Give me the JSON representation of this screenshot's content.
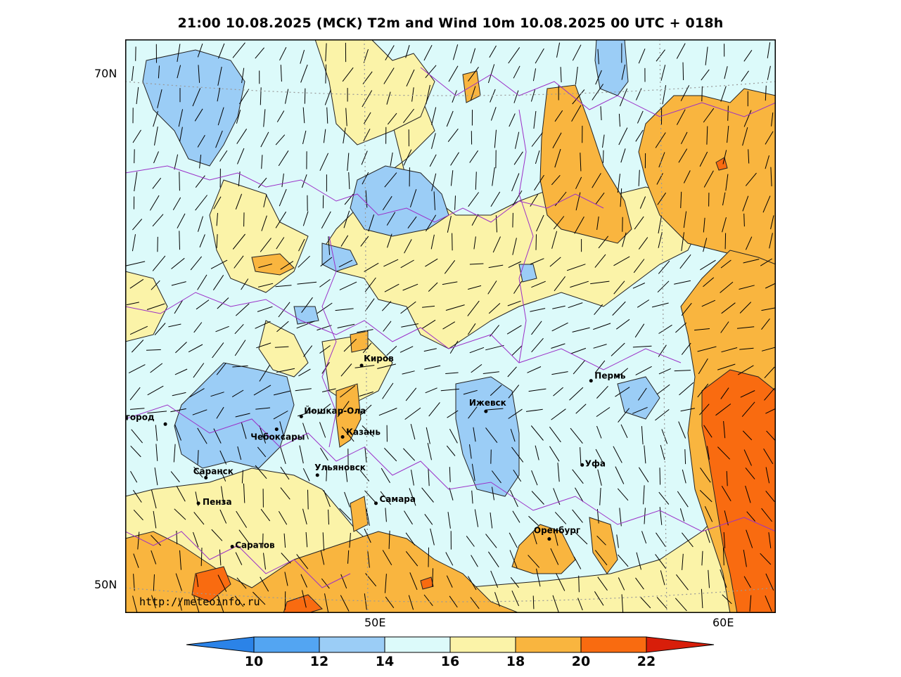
{
  "title": "21:00 10.08.2025 (MCK) T2m and Wind 10m 10.08.2025 00 UTC + 018h",
  "lat_labels": [
    "70N",
    "50N"
  ],
  "lon_labels": [
    "50E",
    "60E"
  ],
  "watermark": "http://meteoinfo.ru",
  "cities": [
    {
      "name": "Киров",
      "lon": 49.6,
      "lat": 58.6
    },
    {
      "name": "Пермь",
      "lon": 56.2,
      "lat": 58.0
    },
    {
      "name": "Нижний Новгород",
      "lon": 44.0,
      "lat": 56.3
    },
    {
      "name": "Йошкар-Ола",
      "lon": 47.9,
      "lat": 56.6
    },
    {
      "name": "Ижевск",
      "lon": 53.2,
      "lat": 56.8
    },
    {
      "name": "Чебоксары",
      "lon": 47.2,
      "lat": 56.1
    },
    {
      "name": "Казань",
      "lon": 49.1,
      "lat": 55.8
    },
    {
      "name": "Уфа",
      "lon": 56.0,
      "lat": 54.7
    },
    {
      "name": "Саранск",
      "lon": 45.2,
      "lat": 54.2
    },
    {
      "name": "Ульяновск",
      "lon": 48.4,
      "lat": 54.3
    },
    {
      "name": "Пенза",
      "lon": 45.0,
      "lat": 53.2
    },
    {
      "name": "Самара",
      "lon": 50.1,
      "lat": 53.2
    },
    {
      "name": "Оренбург",
      "lon": 55.1,
      "lat": 51.8
    },
    {
      "name": "Саратов",
      "lon": 46.0,
      "lat": 51.5
    }
  ],
  "colorbar": {
    "ticks": [
      "10",
      "12",
      "14",
      "16",
      "18",
      "20",
      "22"
    ],
    "colors": [
      "#2b83e8",
      "#53a5f2",
      "#9bcdf6",
      "#dcfafa",
      "#fbf3a8",
      "#f9b53f",
      "#f96b10",
      "#d81e0a"
    ]
  },
  "fill_colors": {
    "lt14": "#9bcdf6",
    "14-16": "#dcfafa",
    "16-18": "#fbf3a8",
    "18-20": "#f9b53f",
    "20-22": "#f96b10",
    "gt22": "#d81e0a"
  },
  "border_color": "#9b30c8"
}
